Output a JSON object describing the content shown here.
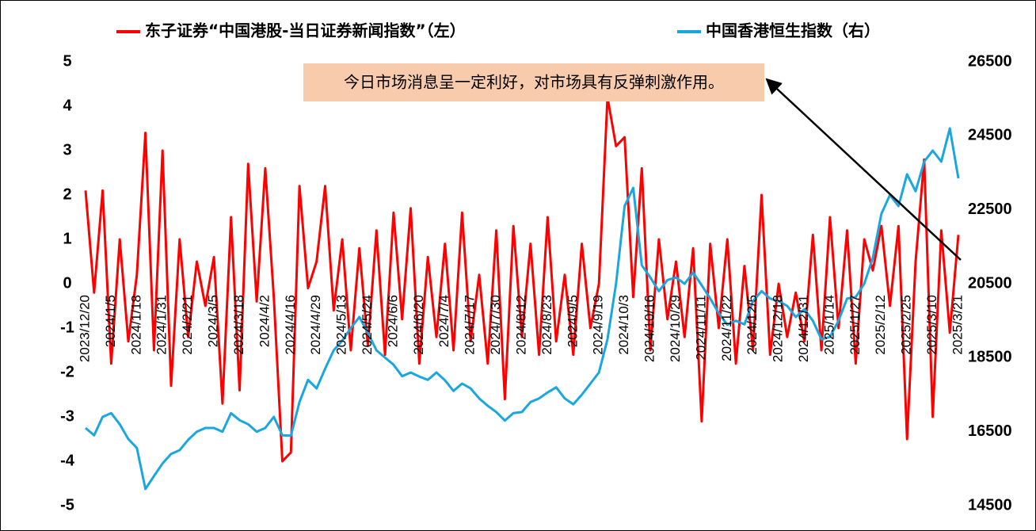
{
  "chart_data": {
    "type": "line",
    "categories": [
      "2023/12/20",
      null,
      null,
      "2024/1/5",
      null,
      null,
      "2024/1/18",
      null,
      null,
      "2024/1/31",
      null,
      null,
      "2024/2/21",
      null,
      null,
      "2024/3/5",
      null,
      null,
      "2024/3/18",
      null,
      null,
      "2024/4/2",
      null,
      null,
      "2024/4/16",
      null,
      null,
      "2024/4/29",
      null,
      null,
      "2024/5/13",
      null,
      null,
      "2024/5/24",
      null,
      null,
      "2024/6/6",
      null,
      null,
      "2024/6/20",
      null,
      null,
      "2024/7/4",
      null,
      null,
      "2024/7/17",
      null,
      null,
      "2024/7/30",
      null,
      null,
      "2024/8/12",
      null,
      null,
      "2024/8/23",
      null,
      null,
      "2024/9/5",
      null,
      null,
      "2024/9/19",
      null,
      null,
      "2024/10/3",
      null,
      null,
      "2024/10/16",
      null,
      null,
      "2024/10/29",
      null,
      null,
      "2024/11/11",
      null,
      null,
      "2024/11/22",
      null,
      null,
      "2024/12/5",
      null,
      null,
      "2024/12/18",
      null,
      null,
      "2024/12/31",
      null,
      null,
      "2025/1/14",
      null,
      null,
      "2025/1/27",
      null,
      null,
      "2025/2/12",
      null,
      null,
      "2025/2/25",
      null,
      null,
      "2025/3/10",
      null,
      null,
      "2025/3/21"
    ],
    "series": [
      {
        "name": "东子证券“中国港股-当日证券新闻指数”（左）",
        "color": "#ff0000",
        "values": [
          2.1,
          -0.2,
          2.1,
          -1.8,
          1.0,
          -1.3,
          0.2,
          3.4,
          -1.5,
          3.0,
          -2.3,
          1.0,
          -1.2,
          0.5,
          -0.5,
          0.6,
          -2.7,
          1.5,
          -2.4,
          2.7,
          -0.4,
          2.6,
          -0.3,
          -4.0,
          -3.8,
          2.2,
          -0.1,
          0.5,
          2.2,
          -0.6,
          1.0,
          -1.5,
          0.8,
          -1.4,
          1.2,
          -1.6,
          1.6,
          -0.8,
          1.7,
          -1.8,
          0.6,
          -1.2,
          0.9,
          -1.5,
          1.6,
          -1.3,
          0.2,
          -1.8,
          1.2,
          -2.6,
          1.3,
          -1.2,
          0.9,
          -1.6,
          1.5,
          -1.3,
          0.2,
          -1.6,
          0.9,
          -1.0,
          0.0,
          4.2,
          3.1,
          3.3,
          -0.3,
          2.6,
          -1.5,
          1.0,
          -0.8,
          0.5,
          -1.2,
          0.8,
          -3.1,
          0.9,
          -1.0,
          1.0,
          -1.8,
          0.4,
          -1.5,
          2.0,
          -1.6,
          0.0,
          -1.2,
          -0.2,
          -1.3,
          1.1,
          -1.5,
          1.5,
          -1.0,
          1.2,
          -1.8,
          1.0,
          0.3,
          1.3,
          -0.5,
          1.3,
          -3.5,
          0.5,
          2.8,
          -3.0,
          1.2,
          -1.1,
          1.1
        ]
      },
      {
        "name": "中国香港恒生指数（右）",
        "color": "#1aa7e0",
        "axis": "y2",
        "values": [
          16600,
          16400,
          16900,
          17000,
          16700,
          16300,
          16060,
          14950,
          15300,
          15640,
          15900,
          16000,
          16280,
          16500,
          16600,
          16600,
          16500,
          17000,
          16810,
          16700,
          16500,
          16600,
          16900,
          16400,
          16390,
          17300,
          17900,
          17670,
          18200,
          18700,
          18960,
          19300,
          19600,
          19170,
          18700,
          18500,
          18310,
          18000,
          18100,
          17990,
          17900,
          18100,
          17890,
          17600,
          17800,
          17670,
          17400,
          17200,
          17030,
          16800,
          17000,
          17030,
          17300,
          17400,
          17560,
          17700,
          17400,
          17240,
          17500,
          17800,
          18100,
          19000,
          20500,
          22600,
          23090,
          21000,
          20670,
          20300,
          20600,
          20670,
          20500,
          20800,
          20460,
          20100,
          19700,
          19390,
          19500,
          19400,
          20030,
          20300,
          20100,
          20030,
          19900,
          19600,
          19810,
          19500,
          19000,
          19060,
          19500,
          20100,
          20140,
          20500,
          21200,
          22390,
          22900,
          22600,
          23460,
          23000,
          23800,
          24100,
          23800,
          24700,
          23350
        ]
      }
    ],
    "ylim": [
      -5,
      5
    ],
    "yticks": [
      -5,
      -4,
      -3,
      -2,
      -1,
      0,
      1,
      2,
      3,
      4,
      5
    ],
    "y2lim": [
      14500,
      26500
    ],
    "y2ticks": [
      14500,
      16500,
      18500,
      20500,
      22500,
      24500,
      26500
    ],
    "grid": false,
    "annotations": [
      {
        "text": "今日市场消息呈一定利好，对市场具有反弹刺激作用。"
      }
    ]
  }
}
